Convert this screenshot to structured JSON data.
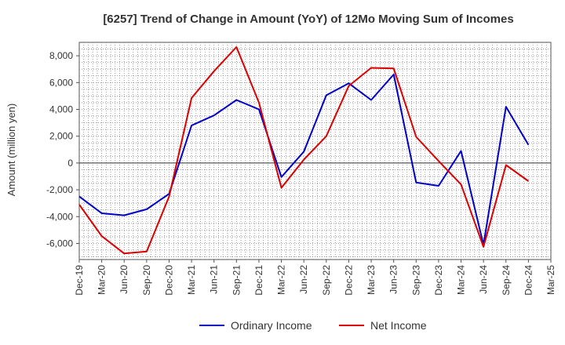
{
  "chart_data": {
    "type": "line",
    "title": "[6257]  Trend of Change in Amount (YoY) of 12Mo Moving Sum of Incomes",
    "ylabel": "Amount (million yen)",
    "xlabel": "",
    "ylim": [
      -7200,
      9000
    ],
    "yticks": [
      -6000,
      -4000,
      -2000,
      0,
      2000,
      4000,
      6000,
      8000
    ],
    "ytick_labels": [
      "-6,000",
      "-4,000",
      "-2,000",
      "0",
      "2,000",
      "4,000",
      "6,000",
      "8,000"
    ],
    "categories": [
      "Dec-19",
      "Mar-20",
      "Jun-20",
      "Sep-20",
      "Dec-20",
      "Mar-21",
      "Jun-21",
      "Sep-21",
      "Dec-21",
      "Mar-22",
      "Jun-22",
      "Sep-22",
      "Dec-22",
      "Mar-23",
      "Jun-23",
      "Sep-23",
      "Dec-23",
      "Mar-24",
      "Jun-24",
      "Sep-24",
      "Dec-24",
      "Mar-25"
    ],
    "grid": true,
    "legend_position": "bottom",
    "series": [
      {
        "name": "Ordinary Income",
        "color": "#0000cc",
        "values": [
          -2500,
          -3750,
          -3900,
          -3450,
          -2300,
          2800,
          3550,
          4700,
          4000,
          -1050,
          850,
          5050,
          5950,
          4700,
          6600,
          -1450,
          -1700,
          900,
          -6100,
          4200,
          1350,
          null
        ]
      },
      {
        "name": "Net Income",
        "color": "#dd0000",
        "values": [
          -3100,
          -5450,
          -6750,
          -6600,
          -2500,
          4850,
          6850,
          8650,
          4500,
          -1850,
          250,
          2000,
          5750,
          7100,
          7050,
          1950,
          150,
          -1600,
          -6250,
          -150,
          -1350,
          null
        ]
      }
    ]
  }
}
